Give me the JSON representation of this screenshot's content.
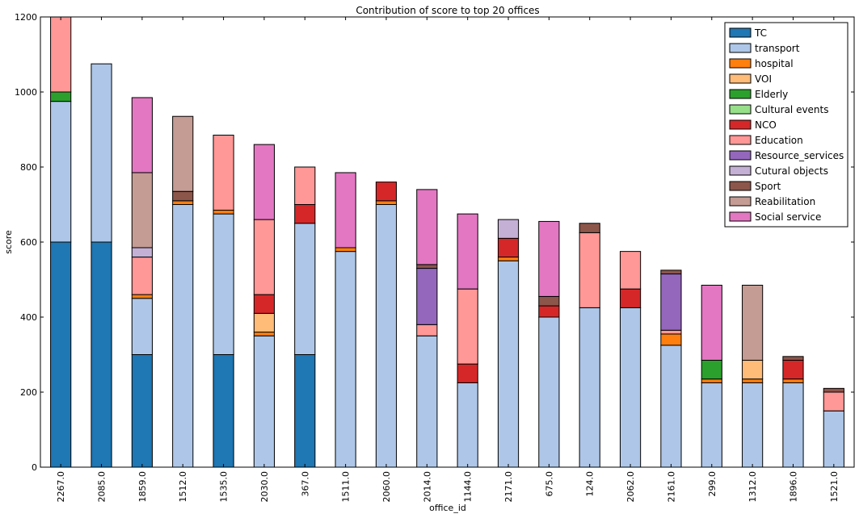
{
  "chart_data": {
    "type": "bar",
    "stacked": true,
    "title": "Contribution of score to top 20 offices",
    "xlabel": "office_id",
    "ylabel": "score",
    "ylim": [
      0,
      1200
    ],
    "yticks": [
      0,
      200,
      400,
      600,
      800,
      1000,
      1200
    ],
    "legend_position": "top-right",
    "grid": false,
    "categories": [
      "2267.0",
      "2085.0",
      "1859.0",
      "1512.0",
      "1535.0",
      "2030.0",
      "367.0",
      "1511.0",
      "2060.0",
      "2014.0",
      "1144.0",
      "2171.0",
      "675.0",
      "124.0",
      "2062.0",
      "2161.0",
      "299.0",
      "1312.0",
      "1896.0",
      "1521.0"
    ],
    "series": [
      {
        "name": "TC",
        "color": "#1f77b4",
        "values": [
          600,
          600,
          300,
          0,
          300,
          0,
          300,
          0,
          0,
          0,
          0,
          0,
          0,
          0,
          0,
          0,
          0,
          0,
          0,
          0
        ]
      },
      {
        "name": "transport",
        "color": "#aec7e8",
        "values": [
          375,
          475,
          150,
          700,
          375,
          350,
          350,
          575,
          700,
          350,
          225,
          550,
          400,
          425,
          425,
          325,
          225,
          225,
          225,
          150
        ]
      },
      {
        "name": "hospital",
        "color": "#ff7f0e",
        "values": [
          0,
          0,
          10,
          10,
          10,
          10,
          0,
          10,
          10,
          0,
          0,
          10,
          0,
          0,
          0,
          30,
          10,
          10,
          10,
          0
        ]
      },
      {
        "name": "VOI",
        "color": "#ffbb78",
        "values": [
          0,
          0,
          0,
          0,
          0,
          50,
          0,
          0,
          0,
          0,
          0,
          0,
          0,
          0,
          0,
          0,
          0,
          50,
          0,
          0
        ]
      },
      {
        "name": "Elderly",
        "color": "#2ca02c",
        "values": [
          25,
          0,
          0,
          0,
          0,
          0,
          0,
          0,
          0,
          0,
          0,
          0,
          0,
          0,
          0,
          0,
          50,
          0,
          0,
          0
        ]
      },
      {
        "name": "Cultural events",
        "color": "#98df8a",
        "values": [
          0,
          0,
          0,
          0,
          0,
          0,
          0,
          0,
          0,
          0,
          0,
          0,
          0,
          0,
          0,
          0,
          0,
          0,
          0,
          0
        ]
      },
      {
        "name": "NCO",
        "color": "#d62728",
        "values": [
          0,
          0,
          0,
          0,
          0,
          50,
          50,
          0,
          50,
          0,
          50,
          50,
          30,
          0,
          50,
          0,
          0,
          0,
          50,
          0
        ]
      },
      {
        "name": "Education",
        "color": "#ff9896",
        "values": [
          200,
          0,
          100,
          0,
          200,
          200,
          100,
          0,
          0,
          30,
          200,
          0,
          0,
          200,
          100,
          10,
          0,
          0,
          0,
          50
        ]
      },
      {
        "name": "Resource_services",
        "color": "#9467bd",
        "values": [
          0,
          0,
          0,
          0,
          0,
          0,
          0,
          0,
          0,
          150,
          0,
          0,
          0,
          0,
          0,
          150,
          0,
          0,
          0,
          0
        ]
      },
      {
        "name": "Cutural objects",
        "color": "#c5b0d5",
        "values": [
          0,
          0,
          25,
          0,
          0,
          0,
          0,
          0,
          0,
          0,
          0,
          50,
          0,
          0,
          0,
          0,
          0,
          0,
          0,
          0
        ]
      },
      {
        "name": "Sport",
        "color": "#8c564b",
        "values": [
          0,
          0,
          0,
          25,
          0,
          0,
          0,
          0,
          0,
          10,
          0,
          0,
          25,
          25,
          0,
          10,
          0,
          0,
          10,
          10
        ]
      },
      {
        "name": "Reabilitation",
        "color": "#c49c94",
        "values": [
          0,
          0,
          200,
          200,
          0,
          0,
          0,
          0,
          0,
          0,
          0,
          0,
          0,
          0,
          0,
          0,
          0,
          200,
          0,
          0
        ]
      },
      {
        "name": "Social service",
        "color": "#e377c2",
        "values": [
          0,
          0,
          200,
          0,
          0,
          200,
          0,
          200,
          0,
          200,
          200,
          0,
          200,
          0,
          0,
          0,
          200,
          0,
          0,
          0
        ]
      }
    ]
  }
}
